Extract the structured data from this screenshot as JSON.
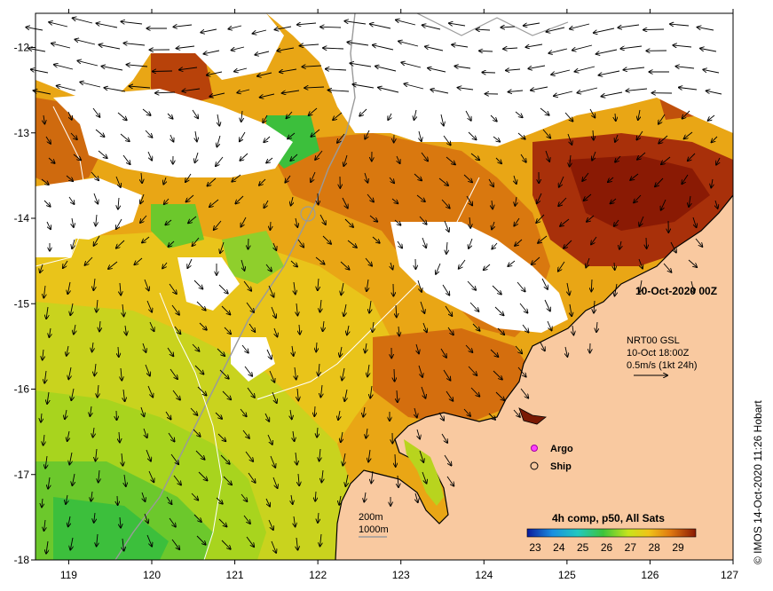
{
  "map": {
    "title": "10-Oct-2020 00Z",
    "x_ticks": [
      "119",
      "120",
      "121",
      "122",
      "123",
      "124",
      "125",
      "126",
      "127"
    ],
    "y_ticks": [
      "-12",
      "-13",
      "-14",
      "-15",
      "-16",
      "-17",
      "-18"
    ],
    "lon_range": [
      118.6,
      127.0
    ],
    "lat_range": [
      -18.0,
      -11.6
    ]
  },
  "current_key": {
    "line1": "NRT00 GSL",
    "line2": "10-Oct 18:00Z",
    "line3": "0.5m/s (1kt 24h)"
  },
  "legend": {
    "argo_label": "Argo",
    "ship_label": "Ship",
    "isobath_200": "200m",
    "isobath_1000": "1000m",
    "colorbar_title": "4h comp, p50, All Sats",
    "colorbar_ticks": [
      "23",
      "24",
      "25",
      "26",
      "27",
      "28",
      "29"
    ]
  },
  "credit": "© IMOS 14-Oct-2020 11:26 Hobart",
  "colors": {
    "land": "#f9c9a0",
    "cloud": "#ffffff",
    "sst_cool": "#3cbf3c",
    "sst_mid": "#e8d41c",
    "sst_warm": "#d97a0f",
    "sst_hot": "#9a2a06"
  }
}
